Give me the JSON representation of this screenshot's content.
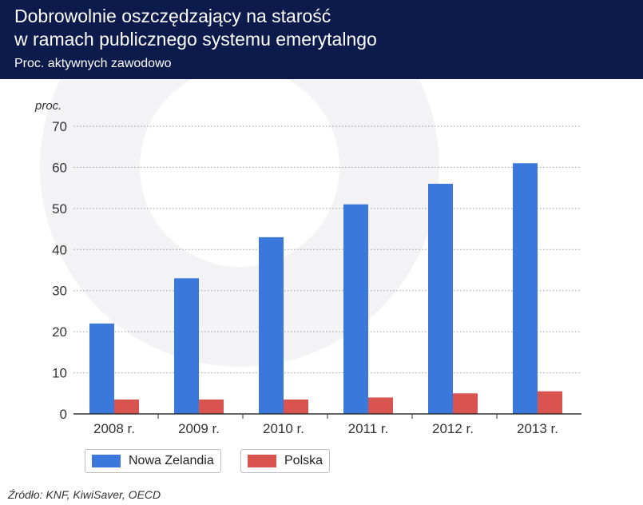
{
  "header": {
    "title_line1": "Dobrowolnie oszczędzający na starość",
    "title_line2": "w ramach publicznego systemu emerytalngo",
    "subtitle": "Proc. aktywnych zawodowo"
  },
  "colors": {
    "header_bg": "#0d1b4c",
    "nowa_zelandia": "#3a78dc",
    "polska": "#d9534f"
  },
  "chart_data": {
    "type": "bar",
    "title": "Dobrowolnie oszczędzający na starość w ramach publicznego systemu emerytalngo",
    "subtitle": "Proc. aktywnych zawodowo",
    "ylabel": "proc.",
    "xlabel": "",
    "categories": [
      "2008 r.",
      "2009 r.",
      "2010 r.",
      "2011 r.",
      "2012 r.",
      "2013 r."
    ],
    "series": [
      {
        "name": "Nowa Zelandia",
        "values": [
          22,
          33,
          43,
          51,
          56,
          61
        ],
        "color": "#3a78dc"
      },
      {
        "name": "Polska",
        "values": [
          3.5,
          3.5,
          3.5,
          4,
          5,
          5.5
        ],
        "color": "#d9534f"
      }
    ],
    "ylim": [
      0,
      70
    ],
    "yticks": [
      0,
      10,
      20,
      30,
      40,
      50,
      60,
      70
    ],
    "grid": true,
    "legend": "bottom-left"
  },
  "source": "Źródło: KNF, KiwiSaver, OECD"
}
